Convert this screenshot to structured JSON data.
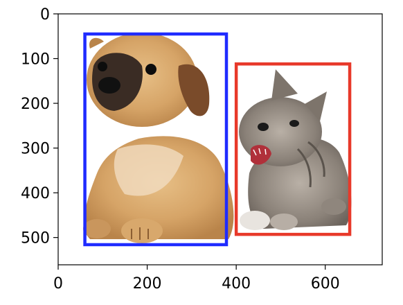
{
  "image": {
    "description_hidden": "",
    "x_axis": {
      "ticks": [
        "0",
        "200",
        "400",
        "600"
      ],
      "values": [
        0,
        200,
        400,
        600
      ],
      "range": [
        0,
        728
      ]
    },
    "y_axis": {
      "ticks": [
        "0",
        "100",
        "200",
        "300",
        "400",
        "500"
      ],
      "values": [
        0,
        100,
        200,
        300,
        400,
        500
      ],
      "range": [
        0,
        561
      ],
      "inverted": true
    },
    "boxes": [
      {
        "label": "dog",
        "color": "#1f2bff",
        "x0": 60,
        "y0": 45,
        "x1": 378,
        "y1": 516
      },
      {
        "label": "cat",
        "color": "#e8392a",
        "x0": 400,
        "y0": 112,
        "x1": 655,
        "y1": 493
      }
    ],
    "colors": {
      "axis": "#000000",
      "background": "#ffffff"
    }
  }
}
